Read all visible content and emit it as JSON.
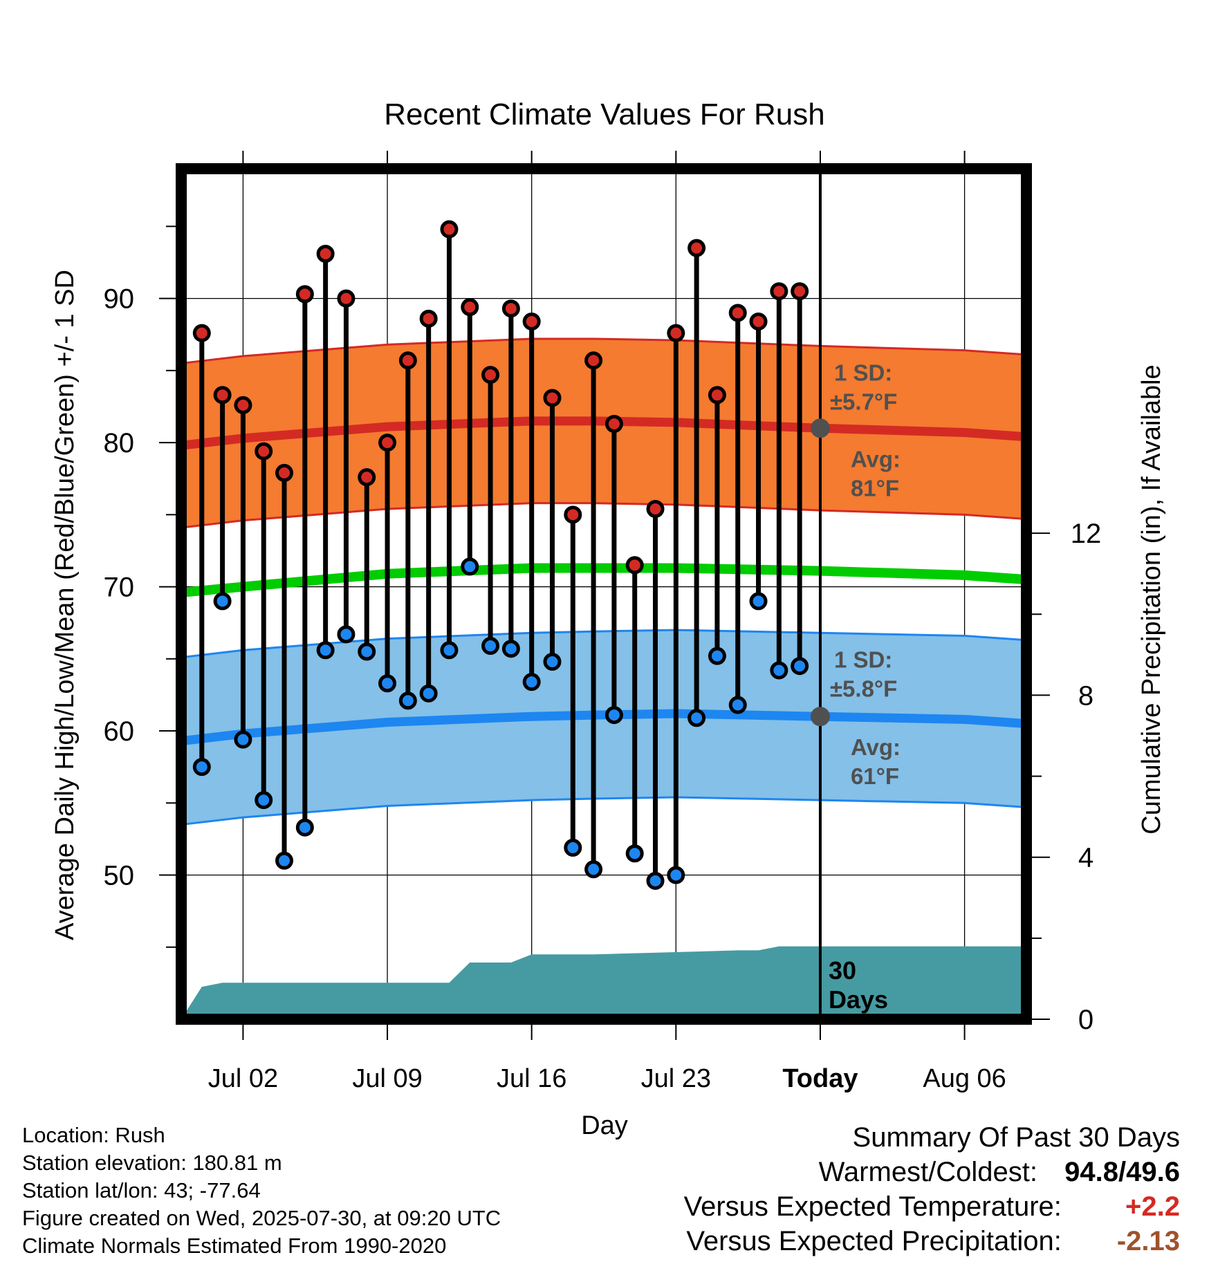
{
  "chart_data": {
    "type": "line",
    "title": "Recent Climate Values For Rush",
    "xlabel": "Day",
    "ylabel": "Average Daily High/Low/Mean (Red/Blue/Green) +/- 1 SD",
    "y2label": "Cumulative Precipitation (in), If Available",
    "ylim": [
      40,
      99
    ],
    "y2lim": [
      0,
      21
    ],
    "y_ticks": [
      50,
      60,
      70,
      80,
      90
    ],
    "y2_ticks": [
      0,
      4,
      8,
      12
    ],
    "x_start": "2025-06-29",
    "x_end": "2025-08-09",
    "x_ticks": [
      {
        "date": "2025-07-02",
        "label": "Jul 02"
      },
      {
        "date": "2025-07-09",
        "label": "Jul 09"
      },
      {
        "date": "2025-07-16",
        "label": "Jul 16"
      },
      {
        "date": "2025-07-23",
        "label": "Jul 23"
      },
      {
        "date": "2025-07-30",
        "label": "Today"
      },
      {
        "date": "2025-08-06",
        "label": "Aug 06"
      }
    ],
    "grid": true,
    "today": "2025-07-30",
    "dates": [
      "2025-06-30",
      "2025-07-01",
      "2025-07-02",
      "2025-07-03",
      "2025-07-04",
      "2025-07-05",
      "2025-07-06",
      "2025-07-07",
      "2025-07-08",
      "2025-07-09",
      "2025-07-10",
      "2025-07-11",
      "2025-07-12",
      "2025-07-13",
      "2025-07-14",
      "2025-07-15",
      "2025-07-16",
      "2025-07-17",
      "2025-07-18",
      "2025-07-19",
      "2025-07-20",
      "2025-07-21",
      "2025-07-22",
      "2025-07-23",
      "2025-07-24",
      "2025-07-25",
      "2025-07-26",
      "2025-07-27",
      "2025-07-28",
      "2025-07-29"
    ],
    "daily_high": [
      87.6,
      83.3,
      82.6,
      79.4,
      77.9,
      90.3,
      93.1,
      90.0,
      77.6,
      80.0,
      85.7,
      88.6,
      94.8,
      89.4,
      84.7,
      89.3,
      88.4,
      83.1,
      75.0,
      85.7,
      81.3,
      71.5,
      75.4,
      87.6,
      93.5,
      83.3,
      89.0,
      88.4,
      90.5,
      90.5
    ],
    "daily_low": [
      57.5,
      69.0,
      59.4,
      55.2,
      51.0,
      53.3,
      65.6,
      66.7,
      65.5,
      63.3,
      62.1,
      62.6,
      65.6,
      71.4,
      65.9,
      65.7,
      63.4,
      64.8,
      51.9,
      50.4,
      61.1,
      51.5,
      49.6,
      50.0,
      60.9,
      65.2,
      61.8,
      69.0,
      64.2,
      64.5
    ],
    "normal_dates": [
      "2025-06-29",
      "2025-07-02",
      "2025-07-09",
      "2025-07-16",
      "2025-07-19",
      "2025-07-23",
      "2025-07-30",
      "2025-08-06",
      "2025-08-09"
    ],
    "normal_high": [
      79.8,
      80.3,
      81.1,
      81.5,
      81.5,
      81.4,
      81.0,
      80.7,
      80.4
    ],
    "normal_low": [
      59.3,
      59.8,
      60.6,
      61.0,
      61.1,
      61.2,
      61.0,
      60.8,
      60.5
    ],
    "normal_mean": [
      69.6,
      70.0,
      70.9,
      71.3,
      71.3,
      71.3,
      71.1,
      70.8,
      70.5
    ],
    "sd_high_label": "1 SD:",
    "sd_high_value": "±5.7°F",
    "sd_low_label": "1 SD:",
    "sd_low_value": "±5.8°F",
    "avg_high_label": "Avg:",
    "avg_high_value": "81°F",
    "avg_low_label": "Avg:",
    "avg_low_value": "61°F",
    "days_label_line1": "30",
    "days_label_line2": "Days",
    "precip_dates": [
      "2025-06-29",
      "2025-06-30",
      "2025-07-01",
      "2025-07-12",
      "2025-07-13",
      "2025-07-15",
      "2025-07-16",
      "2025-07-19",
      "2025-07-26",
      "2025-07-27",
      "2025-07-28",
      "2025-08-09"
    ],
    "cumulative_precip": [
      0.0,
      0.8,
      0.9,
      0.9,
      1.4,
      1.4,
      1.6,
      1.6,
      1.7,
      1.7,
      1.8,
      1.8
    ],
    "colors": {
      "high_band": "#f47b30",
      "high_line": "#d42a24",
      "low_band": "#84c0e8",
      "low_line": "#1e86f0",
      "mean_line": "#00cc00",
      "precip": "#469ba2",
      "label_gray": "#505050",
      "positive": "#d42a24",
      "negative": "#a0522d"
    }
  },
  "footer": {
    "location": "Location: Rush",
    "elevation": "Station elevation: 180.81 m",
    "latlon": "Station lat/lon: 43; -77.64",
    "created": "Figure created on Wed, 2025-07-30, at 09:20 UTC",
    "normals": "Climate Normals Estimated From 1990-2020"
  },
  "summary": {
    "title": "Summary Of Past 30 Days",
    "warmest_label": "Warmest/Coldest:",
    "warmest": "94.8",
    "slash": "/",
    "coldest": "49.6",
    "temp_label": "Versus Expected Temperature:",
    "temp_value": "+2.2",
    "precip_label": "Versus Expected Precipitation:",
    "precip_value": "-2.13"
  }
}
